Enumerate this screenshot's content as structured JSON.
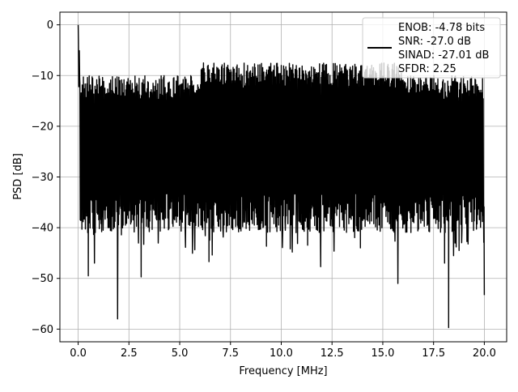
{
  "chart_data": {
    "type": "line",
    "title": "",
    "xlabel": "Frequency [MHz]",
    "ylabel": "PSD [dB]",
    "xlim": [
      -0.9,
      21.1
    ],
    "ylim": [
      -62.5,
      2.5
    ],
    "xticks": [
      0.0,
      2.5,
      5.0,
      7.5,
      10.0,
      12.5,
      15.0,
      17.5,
      20.0
    ],
    "xtick_labels": [
      "0.0",
      "2.5",
      "5.0",
      "7.5",
      "10.0",
      "12.5",
      "15.0",
      "17.5",
      "20.0"
    ],
    "yticks": [
      0,
      -10,
      -20,
      -30,
      -40,
      -50,
      -60
    ],
    "ytick_labels": [
      "0",
      "−10",
      "−20",
      "−30",
      "−40",
      "−50",
      "−60"
    ],
    "grid": true,
    "legend_position": "top-right",
    "series": [
      {
        "name": "ENOB: -4.78 bits\nSNR: -27.0 dB\nSINAD: -27.01 dB\nSFDR: 2.25",
        "legend_lines": [
          "ENOB: -4.78 bits",
          "SNR: -27.0 dB",
          "SINAD: -27.01 dB",
          "SFDR: 2.25"
        ],
        "color": "#000000",
        "x_range": [
          0.0,
          20.0
        ],
        "peak_at_dc_db": 0.0,
        "noise_upper_envelope_db": -10.0,
        "noise_median_db": -20.0,
        "notable_min_points": [
          {
            "x": 0.5,
            "y": -49.5
          },
          {
            "x": 0.8,
            "y": -47.0
          },
          {
            "x": 1.95,
            "y": -58.0
          },
          {
            "x": 3.1,
            "y": -49.7
          },
          {
            "x": 6.45,
            "y": -46.7
          },
          {
            "x": 11.95,
            "y": -47.7
          },
          {
            "x": 15.75,
            "y": -51.0
          },
          {
            "x": 18.05,
            "y": -47.0
          },
          {
            "x": 18.25,
            "y": -59.7
          },
          {
            "x": 20.0,
            "y": -53.3
          }
        ]
      }
    ]
  }
}
